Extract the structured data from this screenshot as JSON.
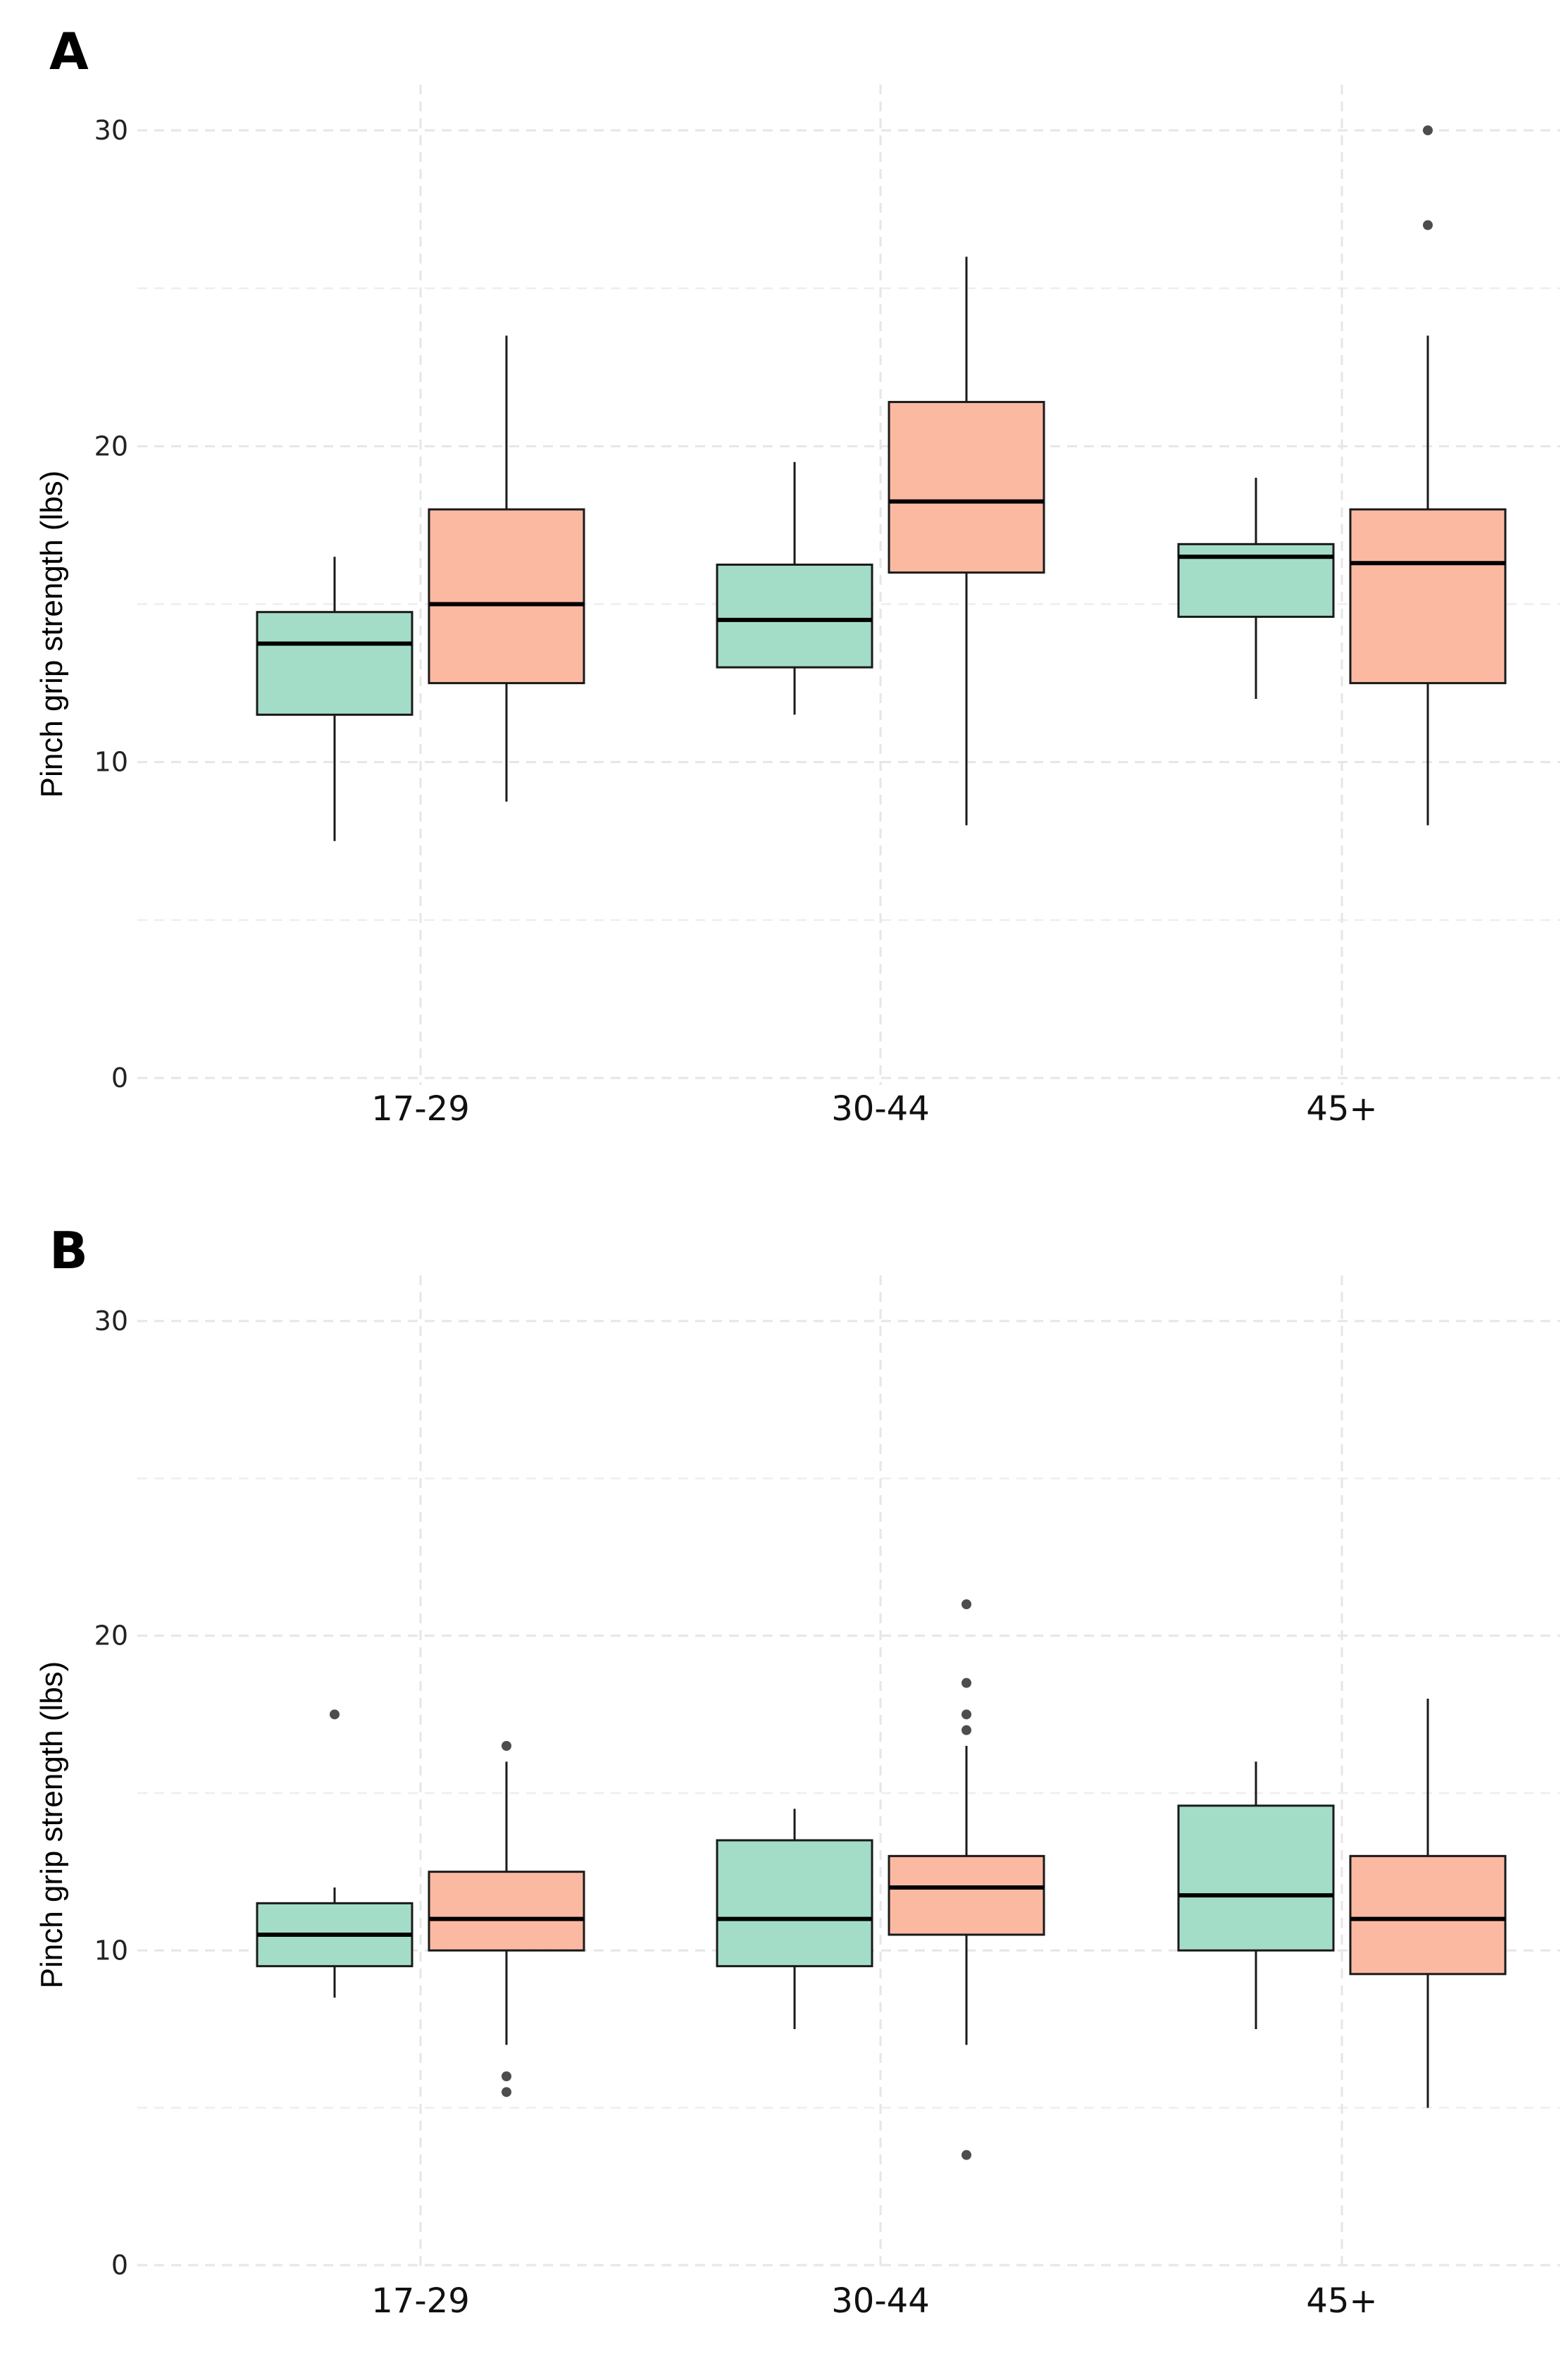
{
  "chart_data": [
    {
      "type": "box",
      "panel_label": "A",
      "ylabel": "Pinch grip strength (lbs)",
      "ylim": [
        0,
        30
      ],
      "yticks": [
        0,
        10,
        20,
        30
      ],
      "grid": true,
      "categories": [
        "17-29",
        "30-44",
        "45+"
      ],
      "series": [
        {
          "color": "#a3ddc8",
          "boxes": [
            {
              "category": "17-29",
              "min": 7.5,
              "q1": 11.5,
              "median": 13.75,
              "q3": 14.75,
              "max": 16.5,
              "outliers": []
            },
            {
              "category": "30-44",
              "min": 11.5,
              "q1": 13.0,
              "median": 14.5,
              "q3": 16.25,
              "max": 19.5,
              "outliers": []
            },
            {
              "category": "45+",
              "min": 12.0,
              "q1": 14.6,
              "median": 16.5,
              "q3": 16.9,
              "max": 19.0,
              "outliers": []
            }
          ]
        },
        {
          "color": "#fbb9a2",
          "boxes": [
            {
              "category": "17-29",
              "min": 8.75,
              "q1": 12.5,
              "median": 15.0,
              "q3": 18.0,
              "max": 23.5,
              "outliers": []
            },
            {
              "category": "30-44",
              "min": 8.0,
              "q1": 16.0,
              "median": 18.25,
              "q3": 21.4,
              "max": 26.0,
              "outliers": []
            },
            {
              "category": "45+",
              "min": 8.0,
              "q1": 12.5,
              "median": 16.3,
              "q3": 18.0,
              "max": 23.5,
              "outliers": [
                27.0,
                30.0
              ]
            }
          ]
        }
      ]
    },
    {
      "type": "box",
      "panel_label": "B",
      "ylabel": "Pinch grip strength (lbs)",
      "ylim": [
        0,
        30
      ],
      "yticks": [
        0,
        10,
        20,
        30
      ],
      "grid": true,
      "categories": [
        "17-29",
        "30-44",
        "45+"
      ],
      "series": [
        {
          "color": "#a3ddc8",
          "boxes": [
            {
              "category": "17-29",
              "min": 8.5,
              "q1": 9.5,
              "median": 10.5,
              "q3": 11.5,
              "max": 12.0,
              "outliers": [
                17.5
              ]
            },
            {
              "category": "30-44",
              "min": 7.5,
              "q1": 9.5,
              "median": 11.0,
              "q3": 13.5,
              "max": 14.5,
              "outliers": []
            },
            {
              "category": "45+",
              "min": 7.5,
              "q1": 10.0,
              "median": 11.75,
              "q3": 14.6,
              "max": 16.0,
              "outliers": []
            }
          ]
        },
        {
          "color": "#fbb9a2",
          "boxes": [
            {
              "category": "17-29",
              "min": 7.0,
              "q1": 10.0,
              "median": 11.0,
              "q3": 12.5,
              "max": 16.0,
              "outliers": [
                5.5,
                6.0,
                16.5
              ]
            },
            {
              "category": "30-44",
              "min": 7.0,
              "q1": 10.5,
              "median": 12.0,
              "q3": 13.0,
              "max": 16.5,
              "outliers": [
                3.5,
                17.0,
                17.5,
                18.5,
                21.0
              ]
            },
            {
              "category": "45+",
              "min": 5.0,
              "q1": 9.25,
              "median": 11.0,
              "q3": 13.0,
              "max": 18.0,
              "outliers": []
            }
          ]
        }
      ]
    }
  ]
}
